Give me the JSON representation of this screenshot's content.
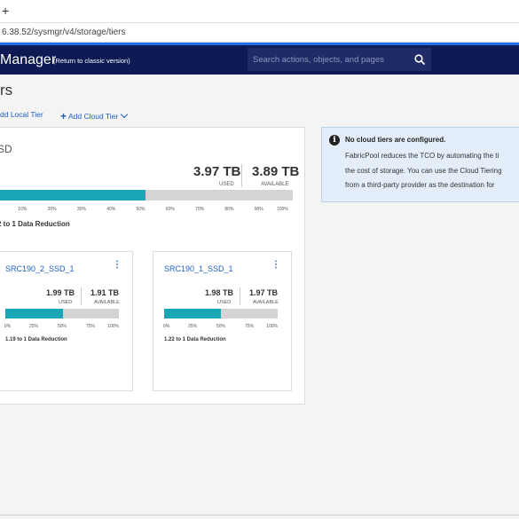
{
  "browser": {
    "new_tab_label": "+",
    "url": "6.38.52/sysmgr/v4/storage/tiers"
  },
  "header": {
    "app_title": "Manager",
    "classic_link": "(Return to classic version)",
    "search_placeholder": "Search actions, objects, and pages",
    "bg_color": "#0d1a54"
  },
  "page": {
    "title": "rs",
    "add_local_tier": "dd Local Tier",
    "add_cloud_tier": "Add Cloud Tier"
  },
  "tier": {
    "name": "SD",
    "used_value": "3.97 TB",
    "used_label": "USED",
    "available_value": "3.89 TB",
    "available_label": "AVAILABLE",
    "used_fraction": 0.5,
    "scale": [
      "",
      "10%",
      "20%",
      "30%",
      "40%",
      "50%",
      "60%",
      "70%",
      "80%",
      "90%",
      "100%"
    ],
    "reduction": "2 to 1 Data Reduction",
    "aggregates": [
      {
        "name": "SRC190_2_SSD_1",
        "used_value": "1.99 TB",
        "used_label": "USED",
        "available_value": "1.91 TB",
        "available_label": "AVAILABLE",
        "used_fraction": 0.51,
        "scale": [
          "0%",
          "25%",
          "50%",
          "75%",
          "100%"
        ],
        "reduction": "1.19 to 1 Data Reduction",
        "menu_icon": "⋮"
      },
      {
        "name": "SRC190_1_SSD_1",
        "used_value": "1.98 TB",
        "used_label": "USED",
        "available_value": "1.97 TB",
        "available_label": "AVAILABLE",
        "used_fraction": 0.5,
        "scale": [
          "0%",
          "25%",
          "50%",
          "75%",
          "100%"
        ],
        "reduction": "1.22 to 1 Data Reduction",
        "menu_icon": "⋮"
      }
    ]
  },
  "info": {
    "icon": "i",
    "title": "No cloud tiers are configured.",
    "lines": [
      "FabricPool reduces the TCO by automating the ti",
      "the cost of storage. You can use the Cloud Tiering",
      "from a third-party provider as the destination for"
    ]
  },
  "colors": {
    "accent": "#1aa6b6",
    "link": "#1f5fc4"
  }
}
